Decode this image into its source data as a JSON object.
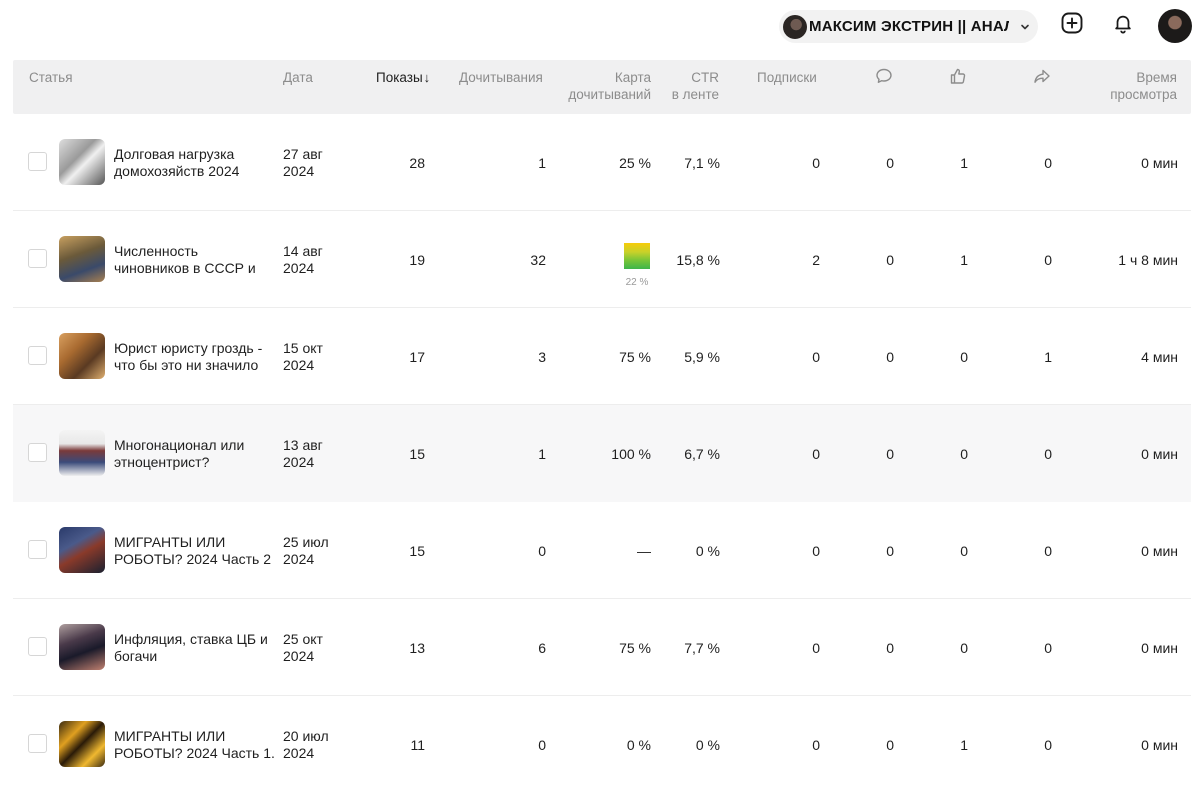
{
  "header": {
    "channel_name": "МАКСИМ ЭКСТРИН || АНАЛИТИКА",
    "icons": [
      "chevron-down-icon",
      "add-icon",
      "bell-icon",
      "avatar"
    ]
  },
  "table": {
    "columns": {
      "article": "Статья",
      "date": "Дата",
      "views": "Показы",
      "views_sort_arrow": "↓",
      "read_throughs": "Дочитывания",
      "read_map_1": "Карта",
      "read_map_2": "дочитываний",
      "ctr_1": "CTR",
      "ctr_2": "в ленте",
      "subscriptions": "Подписки",
      "comments_icon": "comment-icon",
      "likes_icon": "like-icon",
      "shares_icon": "share-icon",
      "time_1": "Время",
      "time_2": "просмотра"
    },
    "rows": [
      {
        "title": "Долговая нагрузка домохозяйств 2024",
        "date_1": "27 авг",
        "date_2": "2024",
        "views": "28",
        "reads": "1",
        "read_map": "25 %",
        "ctr": "7,1 %",
        "subs": "0",
        "comments": "0",
        "likes": "1",
        "shares": "0",
        "time": "0 мин"
      },
      {
        "title": "Численность чиновников в СССР и Р...",
        "date_1": "14 авг",
        "date_2": "2024",
        "views": "19",
        "reads": "32",
        "read_map": "22 %",
        "ctr": "15,8 %",
        "subs": "2",
        "comments": "0",
        "likes": "1",
        "shares": "0",
        "time": "1 ч 8 мин"
      },
      {
        "title": "Юрист юристу гроздь - что бы это ни значило",
        "date_1": "15 окт",
        "date_2": "2024",
        "views": "17",
        "reads": "3",
        "read_map": "75 %",
        "ctr": "5,9 %",
        "subs": "0",
        "comments": "0",
        "likes": "0",
        "shares": "1",
        "time": "4 мин"
      },
      {
        "title": "Многонационал или этноцентрист?",
        "date_1": "13 авг",
        "date_2": "2024",
        "views": "15",
        "reads": "1",
        "read_map": "100 %",
        "ctr": "6,7 %",
        "subs": "0",
        "comments": "0",
        "likes": "0",
        "shares": "0",
        "time": "0 мин"
      },
      {
        "title": "МИГРАНТЫ ИЛИ РОБОТЫ? 2024 Часть 2",
        "date_1": "25 июл",
        "date_2": "2024",
        "views": "15",
        "reads": "0",
        "read_map": "—",
        "ctr": "0 %",
        "subs": "0",
        "comments": "0",
        "likes": "0",
        "shares": "0",
        "time": "0 мин"
      },
      {
        "title": "Инфляция, ставка ЦБ и богачи",
        "date_1": "25 окт",
        "date_2": "2024",
        "views": "13",
        "reads": "6",
        "read_map": "75 %",
        "ctr": "7,7 %",
        "subs": "0",
        "comments": "0",
        "likes": "0",
        "shares": "0",
        "time": "0 мин"
      },
      {
        "title": "МИГРАНТЫ ИЛИ РОБОТЫ? 2024 Часть 1.",
        "date_1": "20 июл",
        "date_2": "2024",
        "views": "11",
        "reads": "0",
        "read_map": "0 %",
        "ctr": "0 %",
        "subs": "0",
        "comments": "0",
        "likes": "1",
        "shares": "0",
        "time": "0 мин"
      }
    ]
  },
  "colors": {
    "header_bg": "#f0f0f1",
    "highlight_row_bg": "#f7f7f8",
    "muted_text": "#8c8c8c",
    "read_map_gradient": [
      "#f7cc0a",
      "#3db54a"
    ]
  }
}
